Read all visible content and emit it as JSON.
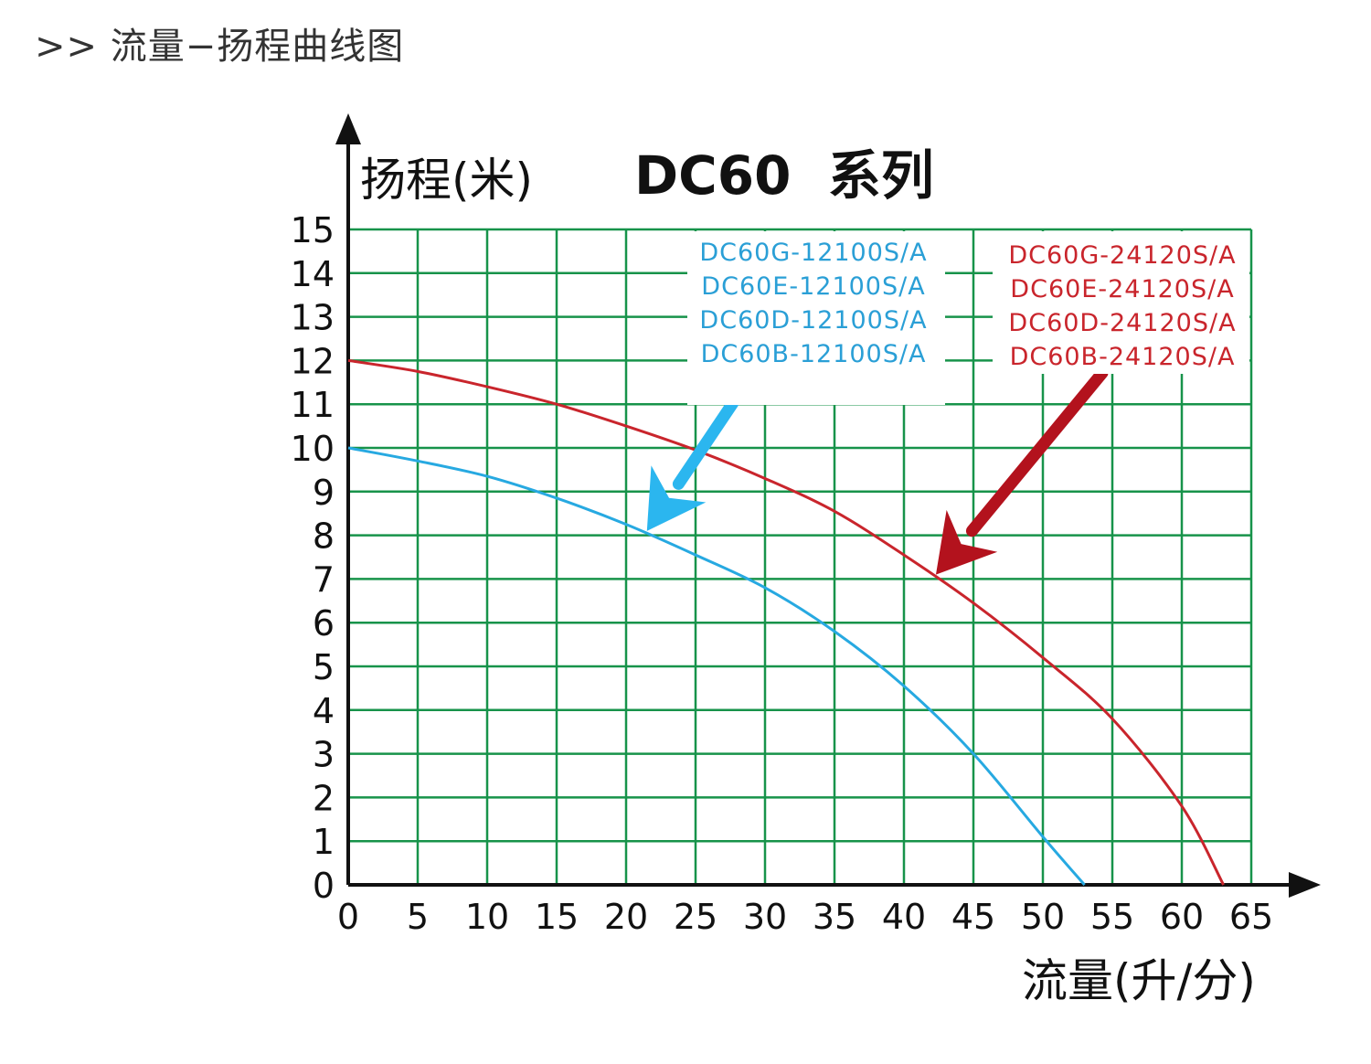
{
  "page": {
    "heading": ">> 流量−扬程曲线图"
  },
  "chart_data": {
    "type": "line",
    "title": "DC60  系列",
    "xlabel": "流量(升/分)",
    "ylabel": "扬程(米)",
    "xlim": [
      0,
      65
    ],
    "ylim": [
      0,
      15
    ],
    "x_ticks": [
      "0",
      "5",
      "10",
      "15",
      "20",
      "25",
      "30",
      "35",
      "40",
      "45",
      "50",
      "55",
      "60",
      "65"
    ],
    "y_ticks": [
      "0",
      "1",
      "2",
      "3",
      "4",
      "5",
      "6",
      "7",
      "8",
      "9",
      "10",
      "11",
      "12",
      "13",
      "14",
      "15"
    ],
    "grid": true,
    "grid_color": "#17934a",
    "series": [
      {
        "name": "DC60G-12100S/A, DC60E-12100S/A, DC60D-12100S/A, DC60B-12100S/A",
        "color": "#27a9e1",
        "x": [
          0,
          5,
          10,
          15,
          20,
          25,
          30,
          35,
          40,
          45,
          50,
          53
        ],
        "y": [
          10,
          9.7,
          9.35,
          8.85,
          8.25,
          7.55,
          6.8,
          5.8,
          4.55,
          3.0,
          1.1,
          0
        ]
      },
      {
        "name": "DC60G-24120S/A, DC60E-24120S/A, DC60D-24120S/A, DC60B-24120S/A",
        "color": "#c9252c",
        "x": [
          0,
          5,
          10,
          15,
          20,
          25,
          30,
          35,
          40,
          45,
          50,
          55,
          60,
          63
        ],
        "y": [
          12,
          11.75,
          11.4,
          11.0,
          10.5,
          9.95,
          9.3,
          8.55,
          7.55,
          6.45,
          5.2,
          3.8,
          1.8,
          0
        ]
      }
    ],
    "legend_blue": [
      "DC60G-12100S/A",
      "DC60E-12100S/A",
      "DC60D-12100S/A",
      "DC60B-12100S/A"
    ],
    "legend_red": [
      "DC60G-24120S/A",
      "DC60E-24120S/A",
      "DC60D-24120S/A",
      "DC60B-24120S/A"
    ],
    "arrows": [
      {
        "color": "#2bb6ef",
        "points_to": {
          "x": 21.5,
          "y": 8.1
        }
      },
      {
        "color": "#b3121d",
        "points_to": {
          "x": 42.3,
          "y": 7.1
        }
      }
    ]
  }
}
